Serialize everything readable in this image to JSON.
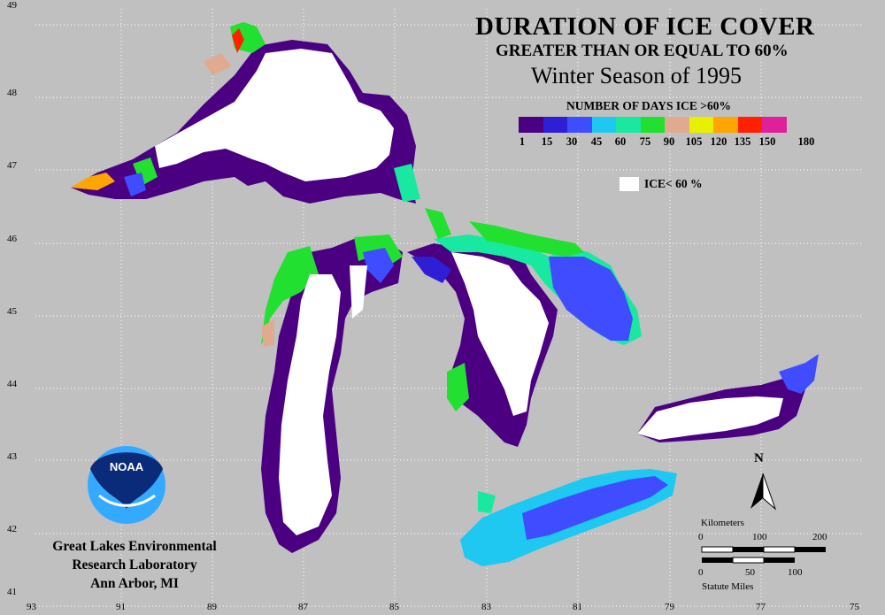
{
  "title": {
    "line1": "DURATION OF ICE COVER",
    "line2": "GREATER THAN OR EQUAL TO 60%",
    "line3": "Winter Season of 1995"
  },
  "legend": {
    "title": "NUMBER OF DAYS ICE >60%",
    "bins": [
      {
        "color": "#4b0082"
      },
      {
        "color": "#2e1fd6"
      },
      {
        "color": "#3f4cff"
      },
      {
        "color": "#1ec8f0"
      },
      {
        "color": "#19e8a0"
      },
      {
        "color": "#22e030"
      },
      {
        "color": "#e0aa90"
      },
      {
        "color": "#e8f000"
      },
      {
        "color": "#ffa500"
      },
      {
        "color": "#ff2000"
      },
      {
        "color": "#e0209a"
      }
    ],
    "tick_labels": [
      "1",
      "15",
      "30",
      "45",
      "60",
      "75",
      "90",
      "105",
      "120",
      "135",
      "150",
      "180"
    ],
    "ice_label": "ICE< 60 %"
  },
  "axes": {
    "lat_labels": [
      "49",
      "48",
      "47",
      "46",
      "45",
      "44",
      "43",
      "42",
      "41"
    ],
    "lon_labels": [
      "93",
      "91",
      "89",
      "87",
      "85",
      "83",
      "81",
      "79",
      "77",
      "75"
    ]
  },
  "credit": {
    "line1": "Great Lakes Environmental",
    "line2": "Research Laboratory",
    "line3": "Ann Arbor, MI",
    "logo_text": "NOAA"
  },
  "scale": {
    "km_title": "Kilometers",
    "km_ticks": [
      "0",
      "100",
      "200"
    ],
    "mi_ticks": [
      "0",
      "50",
      "100"
    ],
    "mi_title": "Statute Miles"
  },
  "north_label": "N",
  "colors": {
    "background": "#c0c0c0",
    "grid": "#ffffff",
    "ice_low": "#ffffff"
  }
}
